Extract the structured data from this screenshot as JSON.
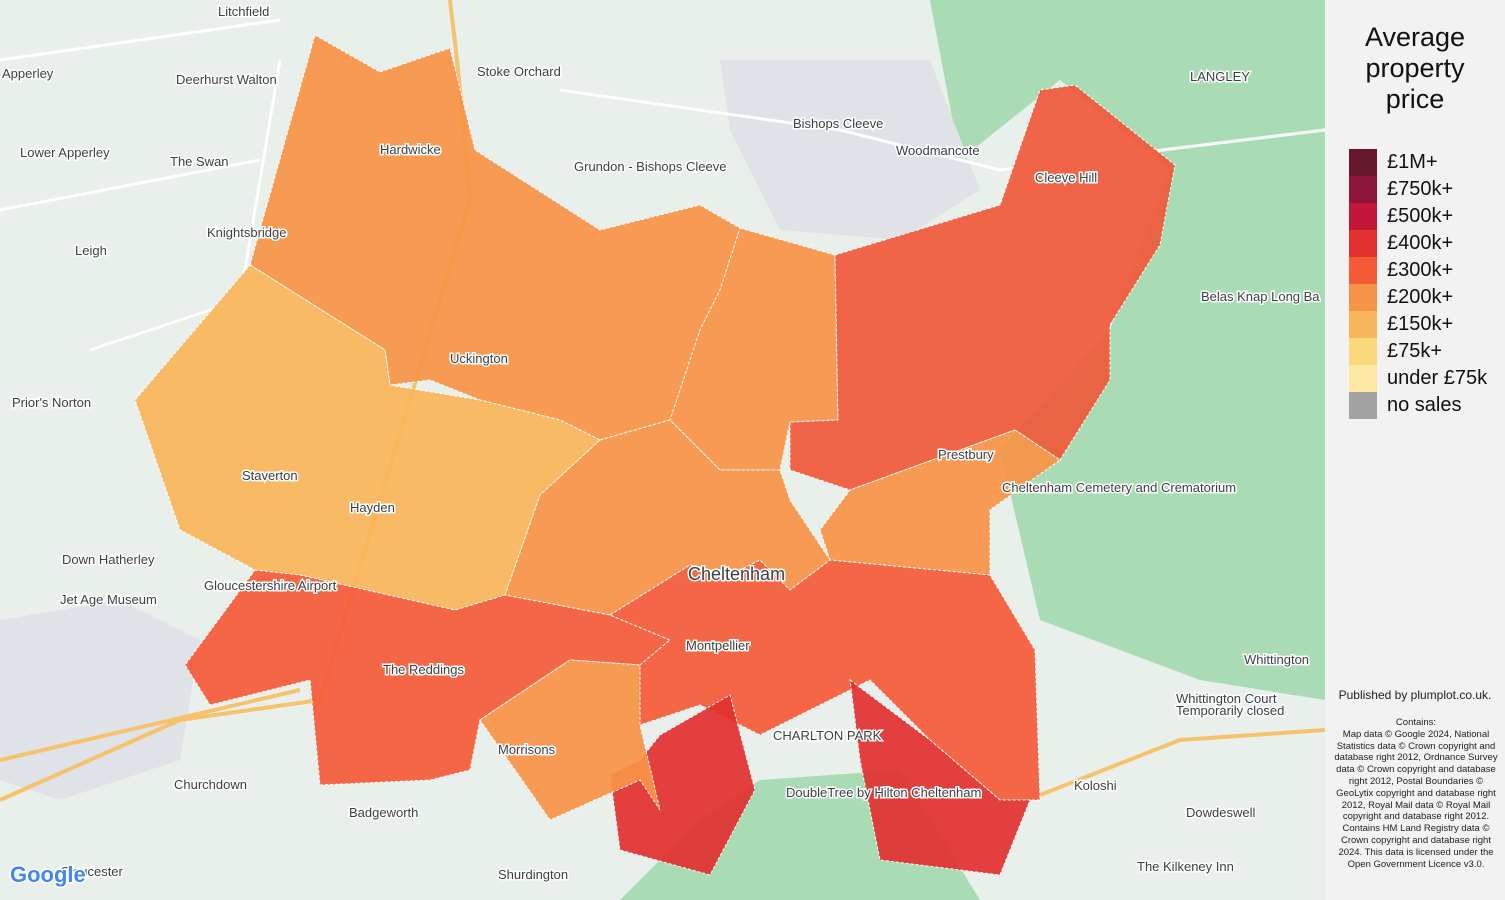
{
  "legend": {
    "title": "Average property price",
    "items": [
      {
        "label": "£1M+",
        "color": "#67172b"
      },
      {
        "label": "£750k+",
        "color": "#8c1539"
      },
      {
        "label": "£500k+",
        "color": "#c1173b"
      },
      {
        "label": "£400k+",
        "color": "#e2302f"
      },
      {
        "label": "£300k+",
        "color": "#f45a37"
      },
      {
        "label": "£200k+",
        "color": "#f79347"
      },
      {
        "label": "£150k+",
        "color": "#f9b559"
      },
      {
        "label": "£75k+",
        "color": "#fbd77e"
      },
      {
        "label": "under £75k",
        "color": "#fde8a4"
      },
      {
        "label": "no sales",
        "color": "#a3a3a3"
      }
    ]
  },
  "places": [
    "Litchfield",
    "Apperley",
    "Deerhurst Walton",
    "Stoke Orchard",
    "Bishops Cleeve",
    "Woodmancote",
    "LANGLEY",
    "Lower Apperley",
    "The Swan",
    "Grundon - Bishops Cleeve",
    "Knightsbridge",
    "Leigh",
    "Prior's Norton",
    "Belas Knap Long Ba",
    "Cheltenham Cemetery and Crematorium",
    "Down Hatherley",
    "Jet Age Museum",
    "Gloucestershire Airport",
    "Cheltenham",
    "Whittington",
    "Whittington Court",
    "Temporarily closed",
    "Koloshi",
    "Dowdeswell",
    "DoubleTree by Hilton Cheltenham",
    "Churchdown",
    "Badgeworth",
    "Shurdington",
    "The Kilkeney Inn",
    "Gloucester",
    "Morrisons",
    "CHARLTON PARK",
    "Hardwicke",
    "Uckington",
    "Staverton",
    "Hayden",
    "Prestbury",
    "Cleeve Hill",
    "The Reddings",
    "Montpellier"
  ],
  "attribution": {
    "published": "Published by plumplot.co.uk.",
    "contains": "Contains:",
    "text": "Map data © Google 2024, National Statistics data © Crown copyright and database right 2012, Ordnance Survey data © Crown copyright and database right 2012, Postal Boundaries © GeoLytix copyright and database right 2012, Royal Mail data © Royal Mail copyright and database right 2012. Contains HM Land Registry data © Crown copyright and database right 2024. This data is licensed under the Open Government Licence v3.0."
  },
  "logo": "Google"
}
